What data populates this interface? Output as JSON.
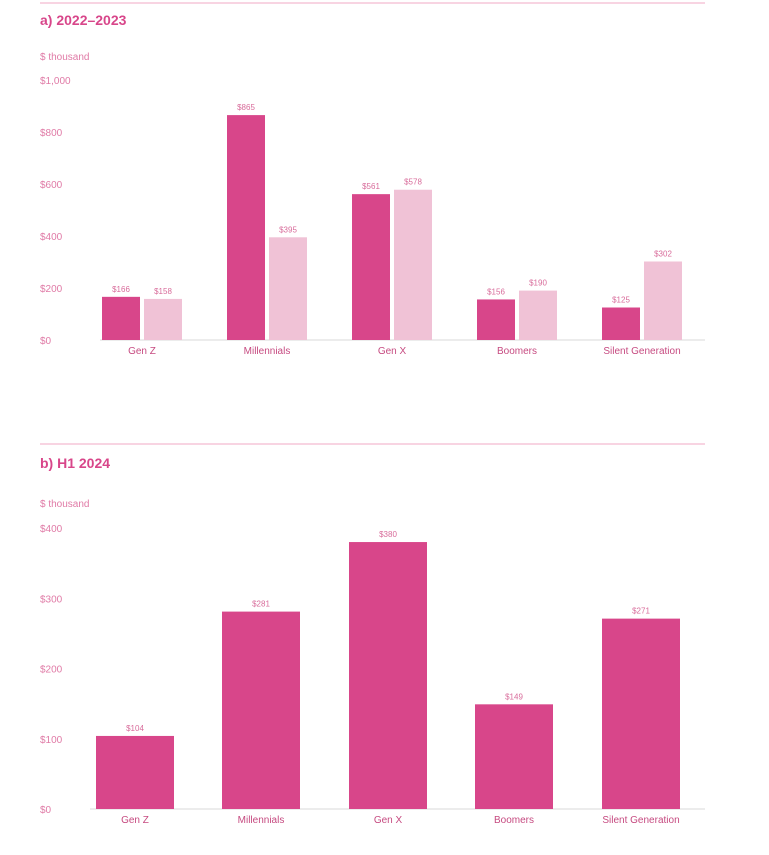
{
  "chart_data": [
    {
      "type": "bar",
      "title": "a) 2022–2023",
      "unit_label": "$ thousand",
      "categories": [
        "Gen Z",
        "Millennials",
        "Gen X",
        "Boomers",
        "Silent Generation"
      ],
      "series": [
        {
          "values": [
            166,
            865,
            561,
            156,
            125
          ],
          "labels": [
            "$166",
            "$865",
            "$561",
            "$156",
            "$125"
          ],
          "color": "#d8468a"
        },
        {
          "values": [
            158,
            395,
            578,
            190,
            302
          ],
          "labels": [
            "$158",
            "$395",
            "$578",
            "$190",
            "$302"
          ],
          "color": "#f0c2d6"
        }
      ],
      "yticks": [
        "$0",
        "$200",
        "$400",
        "$600",
        "$800",
        "$1,000"
      ],
      "ylim": [
        0,
        1000
      ],
      "grid": false
    },
    {
      "type": "bar",
      "title": "b) H1 2024",
      "unit_label": "$ thousand",
      "categories": [
        "Gen Z",
        "Millennials",
        "Gen X",
        "Boomers",
        "Silent Generation"
      ],
      "series": [
        {
          "values": [
            104,
            281,
            380,
            149,
            271
          ],
          "labels": [
            "$104",
            "$281",
            "$380",
            "$149",
            "$271"
          ],
          "color": "#d8468a"
        }
      ],
      "yticks": [
        "$0",
        "$100",
        "$200",
        "$300",
        "$400"
      ],
      "ylim": [
        0,
        400
      ],
      "grid": false
    }
  ]
}
